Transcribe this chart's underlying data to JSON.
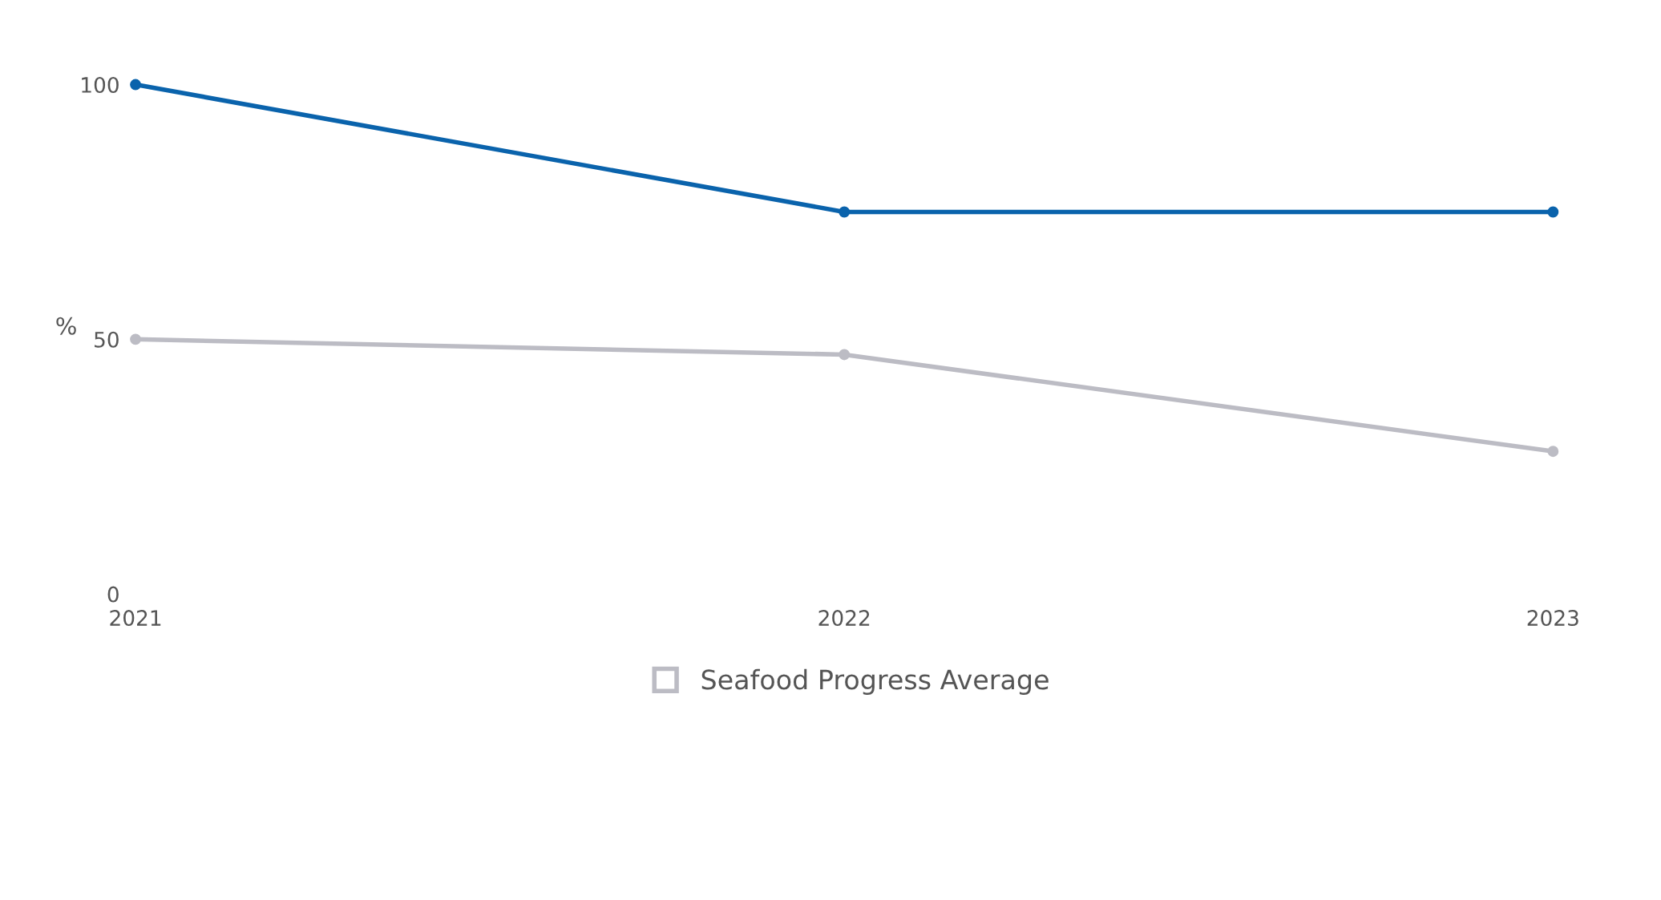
{
  "chart_data": {
    "type": "line",
    "ylabel": "%",
    "categories": [
      "2021",
      "2022",
      "2023"
    ],
    "series": [
      {
        "color": "#0a63ac",
        "values": [
          100,
          75,
          75
        ]
      },
      {
        "name": "Seafood Progress Average",
        "color": "#bcbcc4",
        "values": [
          50,
          47,
          28
        ]
      }
    ],
    "ylim": [
      0,
      100
    ],
    "yticks": [
      0,
      50,
      100
    ],
    "grid": false,
    "legend": "bottom",
    "marker": "circle",
    "line_style": "solid"
  }
}
